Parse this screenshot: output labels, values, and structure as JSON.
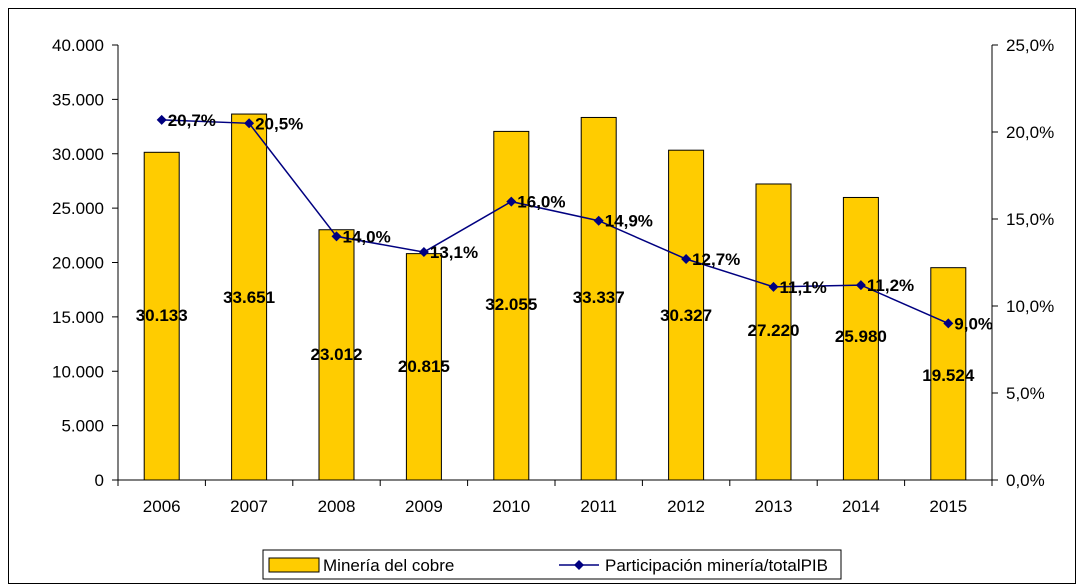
{
  "chart_data": {
    "type": "bar",
    "categories": [
      "2006",
      "2007",
      "2008",
      "2009",
      "2010",
      "2011",
      "2012",
      "2013",
      "2014",
      "2015"
    ],
    "series": [
      {
        "name": "Minería del cobre",
        "type": "bar",
        "axis": "left",
        "color": "#FFCC00",
        "values": [
          30133,
          33651,
          23012,
          20815,
          32055,
          33337,
          30327,
          27220,
          25980,
          19524
        ],
        "labels": [
          "30.133",
          "33.651",
          "23.012",
          "20.815",
          "32.055",
          "33.337",
          "30.327",
          "27.220",
          "25.980",
          "19.524"
        ]
      },
      {
        "name": "Participación minería/totalPIB",
        "type": "line",
        "axis": "right",
        "color": "#000080",
        "values": [
          20.7,
          20.5,
          14.0,
          13.1,
          16.0,
          14.9,
          12.7,
          11.1,
          11.2,
          9.0
        ],
        "labels": [
          "20,7%",
          "20,5%",
          "14,0%",
          "13,1%",
          "16,0%",
          "14,9%",
          "12,7%",
          "11,1%",
          "11,2%",
          "9,0%"
        ]
      }
    ],
    "ylim_left": [
      0,
      40000
    ],
    "yticks_left": [
      "0",
      "5.000",
      "10.000",
      "15.000",
      "20.000",
      "25.000",
      "30.000",
      "35.000",
      "40.000"
    ],
    "ylim_right": [
      0,
      25
    ],
    "yticks_right": [
      "0,0%",
      "5,0%",
      "10,0%",
      "15,0%",
      "20,0%",
      "25,0%"
    ],
    "grid": false,
    "legend_position": "bottom"
  }
}
